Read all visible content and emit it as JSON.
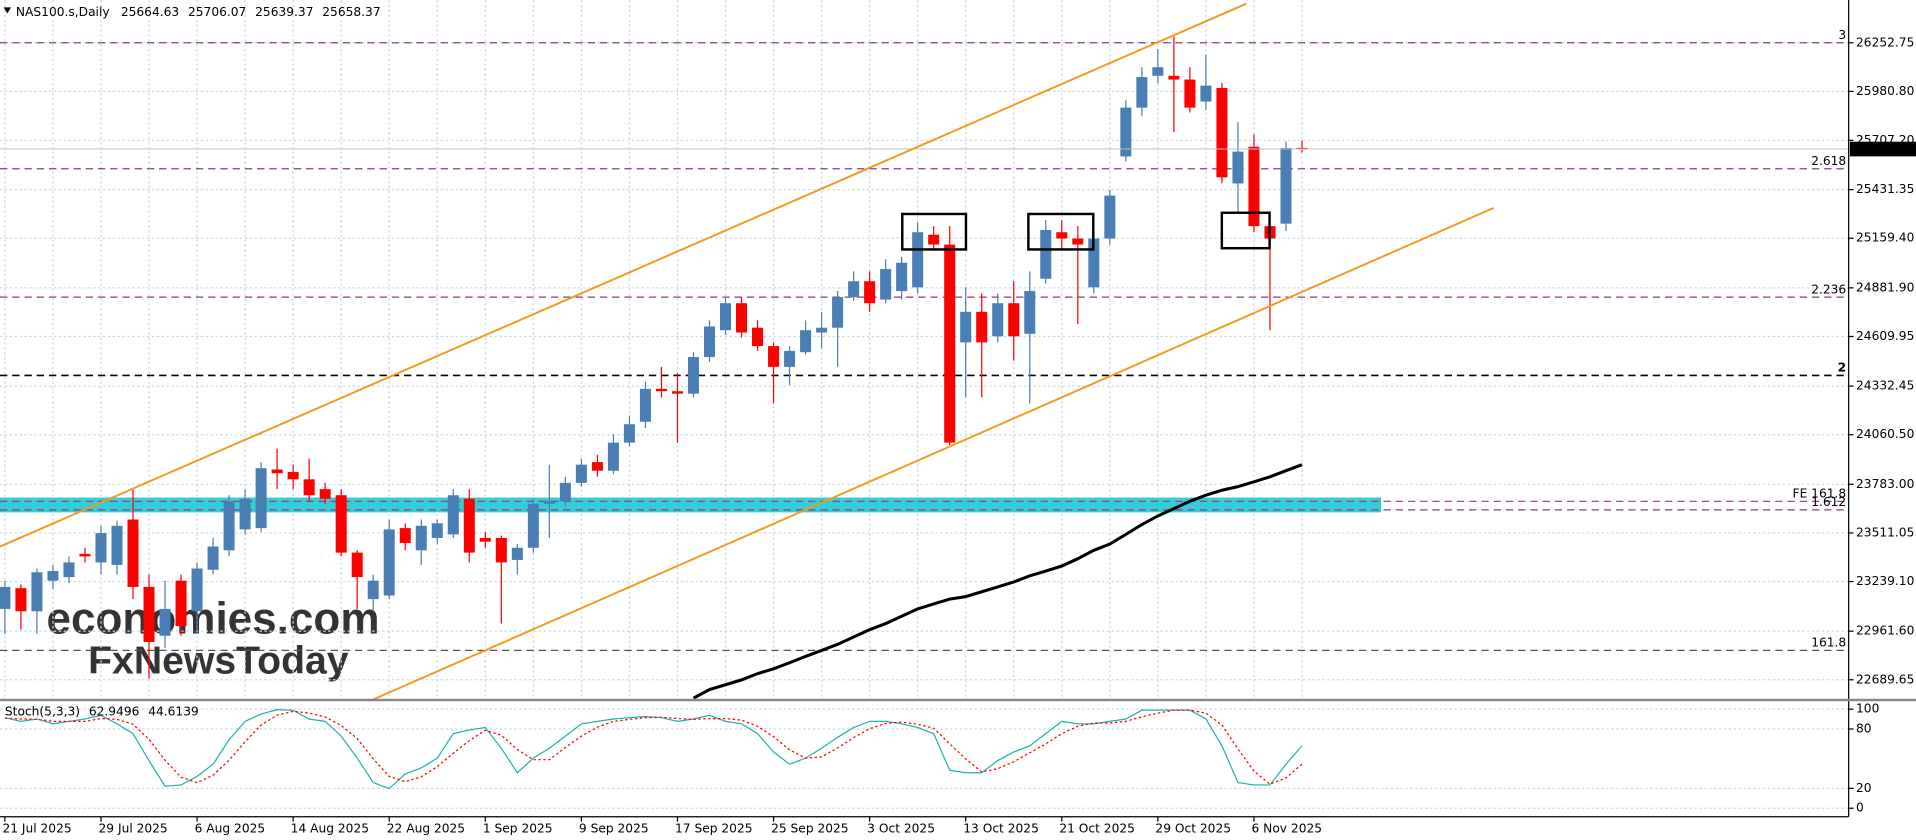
{
  "watermark": {
    "line1": "economies.com",
    "line2": "FxNewsToday"
  },
  "chart_data": [
    {
      "type": "candlestick",
      "title": "NAS100.s,Daily",
      "categories": [
        "21 Jul 2025",
        null,
        null,
        null,
        null,
        null,
        "29 Jul 2025",
        null,
        null,
        null,
        null,
        null,
        "6 Aug 2025",
        null,
        null,
        null,
        null,
        null,
        "14 Aug 2025",
        null,
        null,
        null,
        null,
        null,
        "22 Aug 2025",
        null,
        null,
        null,
        null,
        null,
        "1 Sep 2025",
        null,
        null,
        null,
        null,
        null,
        "9 Sep 2025",
        null,
        null,
        null,
        null,
        null,
        "17 Sep 2025",
        null,
        null,
        null,
        null,
        null,
        "25 Sep 2025",
        null,
        null,
        null,
        null,
        null,
        "3 Oct 2025",
        null,
        null,
        null,
        null,
        null,
        "13 Oct 2025",
        null,
        null,
        null,
        null,
        null,
        "21 Oct 2025",
        null,
        null,
        null,
        null,
        null,
        "29 Oct 2025",
        null,
        null,
        null,
        null,
        null,
        "6 Nov 2025",
        null,
        null,
        null
      ],
      "open": [
        23086,
        23202,
        23073,
        23244,
        23264,
        23394,
        23346,
        23332,
        23586,
        23209,
        22936,
        23244,
        23073,
        23305,
        23414,
        23531,
        23538,
        23866,
        23852,
        23811,
        23756,
        23722,
        23401,
        23141,
        23161,
        23538,
        23414,
        23483,
        23503,
        23702,
        23483,
        23483,
        23360,
        23428,
        23674,
        23688,
        23791,
        23907,
        23859,
        24016,
        24133,
        24317,
        24304,
        24290,
        24495,
        24645,
        24796,
        24659,
        24556,
        24440,
        24522,
        24632,
        24659,
        24830,
        24919,
        24816,
        24864,
        24885,
        25179,
        25124,
        24577,
        24748,
        24611,
        24796,
        24625,
        24933,
        25193,
        25158,
        24885,
        25158,
        25617,
        25890,
        26068,
        26068,
        26047,
        25924,
        26000,
        25466,
        25671,
        25227,
        25241,
        25664.63
      ],
      "high": [
        23244,
        23223,
        23312,
        23332,
        23380,
        23428,
        23551,
        23579,
        23756,
        23278,
        23244,
        23278,
        23346,
        23483,
        23722,
        23756,
        23907,
        23982,
        23893,
        23927,
        23791,
        23756,
        23414,
        23278,
        23586,
        23565,
        23586,
        23586,
        23756,
        23756,
        23517,
        23497,
        23449,
        23702,
        23893,
        23825,
        23927,
        23948,
        24064,
        24167,
        24358,
        24440,
        24406,
        24522,
        24700,
        24830,
        24830,
        24700,
        24577,
        24556,
        24700,
        24748,
        24864,
        24974,
        24974,
        25042,
        25056,
        25247,
        25227,
        25227,
        24885,
        24851,
        24851,
        24919,
        24974,
        25261,
        25261,
        25227,
        25193,
        25432,
        25931,
        26116,
        26218,
        26287,
        26116,
        26184,
        26027,
        25808,
        25740,
        25261,
        25700,
        25706.07
      ],
      "low": [
        22946,
        22970,
        22946,
        23196,
        23230,
        23346,
        23278,
        23278,
        23141,
        22696,
        22867,
        22936,
        22946,
        23278,
        23380,
        23503,
        23517,
        23756,
        23756,
        23688,
        23674,
        23380,
        23086,
        23073,
        23141,
        23414,
        23332,
        23449,
        23483,
        23346,
        23428,
        23004,
        23278,
        23401,
        23483,
        23661,
        23770,
        23825,
        23839,
        23996,
        24098,
        24269,
        24016,
        24269,
        24468,
        24618,
        24604,
        24529,
        24235,
        24338,
        24509,
        24543,
        24440,
        24810,
        24748,
        24796,
        24816,
        24851,
        25090,
        24003,
        24269,
        24269,
        24577,
        24475,
        24235,
        24905,
        25090,
        24680,
        24851,
        25124,
        25589,
        25842,
        26027,
        25753,
        25863,
        25876,
        25466,
        25295,
        25193,
        24645,
        25200,
        25639.37
      ],
      "close": [
        23209,
        23073,
        23291,
        23298,
        23346,
        23380,
        23510,
        23551,
        23209,
        22901,
        23086,
        22990,
        23312,
        23435,
        23688,
        23702,
        23873,
        23845,
        23811,
        23722,
        23702,
        23401,
        23264,
        23244,
        23531,
        23455,
        23551,
        23565,
        23722,
        23401,
        23462,
        23346,
        23428,
        23674,
        23688,
        23791,
        23893,
        23859,
        24016,
        24119,
        24317,
        24304,
        24290,
        24495,
        24666,
        24796,
        24632,
        24556,
        24440,
        24529,
        24645,
        24659,
        24830,
        24919,
        24796,
        24987,
        25022,
        25193,
        25124,
        24016,
        24748,
        24577,
        24796,
        24611,
        24864,
        25206,
        25158,
        25124,
        25158,
        25398,
        25890,
        26061,
        26116,
        26047,
        25890,
        26013,
        25500,
        25644,
        25227,
        25158,
        25664,
        25658.37
      ],
      "up_color": "#4a7fb5",
      "down_color": "#ff0000",
      "series": [
        {
          "color": "#000000",
          "values": [
            null,
            null,
            null,
            null,
            null,
            null,
            null,
            null,
            null,
            null,
            null,
            null,
            null,
            null,
            null,
            null,
            null,
            null,
            null,
            null,
            null,
            null,
            null,
            null,
            null,
            null,
            null,
            null,
            null,
            null,
            null,
            null,
            null,
            null,
            null,
            null,
            null,
            null,
            null,
            null,
            null,
            null,
            null,
            22587,
            22635,
            22662,
            22689,
            22724,
            22751,
            22785,
            22820,
            22854,
            22888,
            22929,
            22970,
            23004,
            23045,
            23086,
            23114,
            23141,
            23155,
            23182,
            23209,
            23237,
            23271,
            23298,
            23326,
            23367,
            23414,
            23449,
            23503,
            23558,
            23606,
            23647,
            23688,
            23722,
            23750,
            23770,
            23797,
            23825,
            23859,
            23893
          ]
        }
      ],
      "levels": [
        {
          "value": 26253,
          "label": "3",
          "color": "#8b3a8b"
        },
        {
          "value": 25548,
          "label": "2.618",
          "color": "#8b3a8b"
        },
        {
          "value": 24830,
          "label": "2.236",
          "color": "#8b3a8b"
        },
        {
          "value": 24392,
          "label": "2",
          "color": "#000000"
        },
        {
          "value": 23688,
          "label": "FE 161.8",
          "color": "#8b3a8b"
        },
        {
          "value": 23640,
          "label": "1.612",
          "color": "#8b3a8b"
        },
        {
          "value": 22854,
          "label": "161.8",
          "color": "#555555"
        }
      ],
      "band": [
        23626,
        23709
      ],
      "band_color": "#1ec8d2",
      "ylim": [
        22580,
        26492
      ],
      "yticks": [
        26252.75,
        {
          "value": 25980.8,
          "label": "25980.80"
        },
        {
          "value": 25707.2,
          "label": "25707.20"
        },
        25431.35,
        {
          "value": 25159.4,
          "label": "25159.40"
        },
        {
          "value": 24881.9,
          "label": "24881.90"
        },
        24609.95,
        24332.45,
        {
          "value": 24060.5,
          "label": "24060.50"
        },
        {
          "value": 23783,
          "label": "23783.00"
        },
        23511.05,
        {
          "value": 23239.1,
          "label": "23239.10"
        },
        {
          "value": 22961.6,
          "label": "22961.60"
        },
        22689.65
      ],
      "grid": true
    },
    {
      "type": "line",
      "title": "Stoch(5,3,3)",
      "series": [
        {
          "color": "#20b2aa",
          "dash": false,
          "values": [
            91.4,
            87.7,
            90.1,
            85.2,
            87.7,
            90.1,
            93.8,
            85.2,
            75.3,
            48.1,
            22.2,
            23.5,
            32.1,
            44.4,
            69.1,
            87.7,
            95.1,
            99.5,
            98.8,
            90.1,
            87.7,
            72.8,
            50.6,
            25.9,
            19.8,
            34.6,
            40.7,
            50.6,
            75.3,
            79.0,
            81.5,
            60.5,
            35.8,
            50.6,
            60.5,
            72.8,
            85.2,
            87.7,
            90.1,
            91.4,
            92.6,
            91.4,
            87.7,
            90.1,
            93.8,
            87.7,
            85.2,
            75.3,
            56.8,
            44.4,
            50.6,
            60.5,
            71.6,
            81.5,
            87.7,
            87.7,
            85.2,
            81.5,
            75.3,
            38.3,
            35.8,
            35.8,
            48.1,
            56.8,
            63.0,
            75.3,
            87.7,
            85.2,
            85.2,
            87.7,
            90.1,
            99.0,
            99.0,
            99.0,
            99.0,
            90.1,
            63.0,
            25.9,
            23.5,
            23.5,
            44.4,
            62.9496
          ]
        },
        {
          "color": "#ff0000",
          "dash": true,
          "values": [
            91.0,
            90.0,
            89.7,
            87.7,
            87.7,
            87.7,
            90.5,
            89.7,
            84.8,
            69.5,
            48.5,
            31.3,
            25.9,
            33.3,
            48.5,
            67.1,
            84.0,
            94.1,
            97.8,
            96.1,
            92.2,
            83.5,
            70.4,
            49.8,
            32.1,
            26.8,
            31.7,
            42.0,
            55.5,
            68.3,
            78.6,
            73.7,
            59.3,
            49.0,
            49.0,
            61.3,
            72.8,
            81.9,
            87.7,
            89.7,
            91.4,
            91.8,
            90.6,
            89.7,
            90.5,
            90.5,
            88.9,
            82.7,
            72.4,
            58.8,
            50.6,
            51.8,
            60.9,
            71.2,
            80.3,
            85.6,
            86.9,
            84.8,
            80.7,
            65.0,
            49.8,
            36.6,
            39.9,
            46.9,
            56.0,
            65.0,
            75.3,
            82.7,
            86.0,
            86.0,
            87.7,
            92.3,
            96.0,
            99.0,
            99.0,
            96.0,
            84.0,
            59.7,
            37.5,
            24.3,
            30.5,
            44.6139
          ]
        }
      ],
      "ylim": [
        0,
        100
      ],
      "yticks": [
        100,
        80,
        20,
        0
      ],
      "grid": true
    }
  ]
}
